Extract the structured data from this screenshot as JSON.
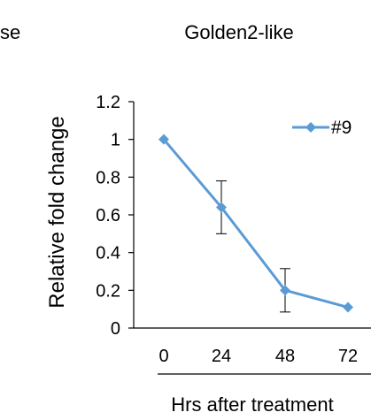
{
  "left_fragment": "se",
  "chart_data": {
    "type": "line",
    "title": "Golden2-like",
    "xlabel": "Hrs after treatment",
    "ylabel": "Relative fold change",
    "categories": [
      "0",
      "24",
      "48",
      "72"
    ],
    "ylim": [
      0,
      1.2
    ],
    "yticks": [
      "0",
      "0.2",
      "0.4",
      "0.6",
      "0.8",
      "1",
      "1.2"
    ],
    "grid": false,
    "legend_position": "top-right",
    "series": [
      {
        "name": "#9",
        "values": [
          1.0,
          0.64,
          0.2,
          0.11
        ],
        "error": [
          0,
          0.14,
          0.115,
          0
        ],
        "color": "#5B9BD5"
      }
    ]
  }
}
